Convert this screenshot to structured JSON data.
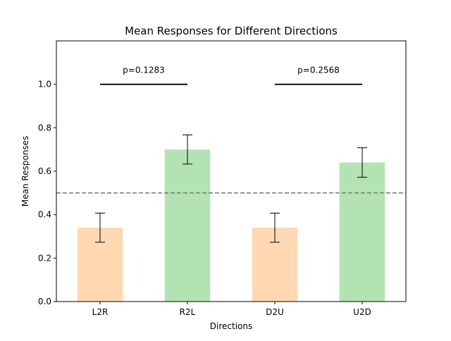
{
  "chart_data": {
    "type": "bar",
    "title": "Mean Responses for Different Directions",
    "xlabel": "Directions",
    "ylabel": "Mean Responses",
    "categories": [
      "L2R",
      "R2L",
      "D2U",
      "U2D"
    ],
    "values": [
      0.34,
      0.7,
      0.34,
      0.64
    ],
    "errors": [
      0.067,
      0.067,
      0.067,
      0.068
    ],
    "bar_colors": [
      "#ffd8b1",
      "#b3e3b3",
      "#ffd8b1",
      "#b3e3b3"
    ],
    "ylim": [
      0,
      1.2
    ],
    "yticks": [
      0.0,
      0.2,
      0.4,
      0.6,
      0.8,
      1.0
    ],
    "ytick_labels": [
      "0.0",
      "0.2",
      "0.4",
      "0.6",
      "0.8",
      "1.0"
    ],
    "reference_line": {
      "y": 0.5,
      "style": "dashed",
      "color": "#808080"
    },
    "significance": [
      {
        "from": 0,
        "to": 1,
        "y": 1.0,
        "label": "p=0.1283"
      },
      {
        "from": 2,
        "to": 3,
        "y": 1.0,
        "label": "p=0.2568"
      }
    ],
    "grid": false,
    "legend": "none"
  }
}
